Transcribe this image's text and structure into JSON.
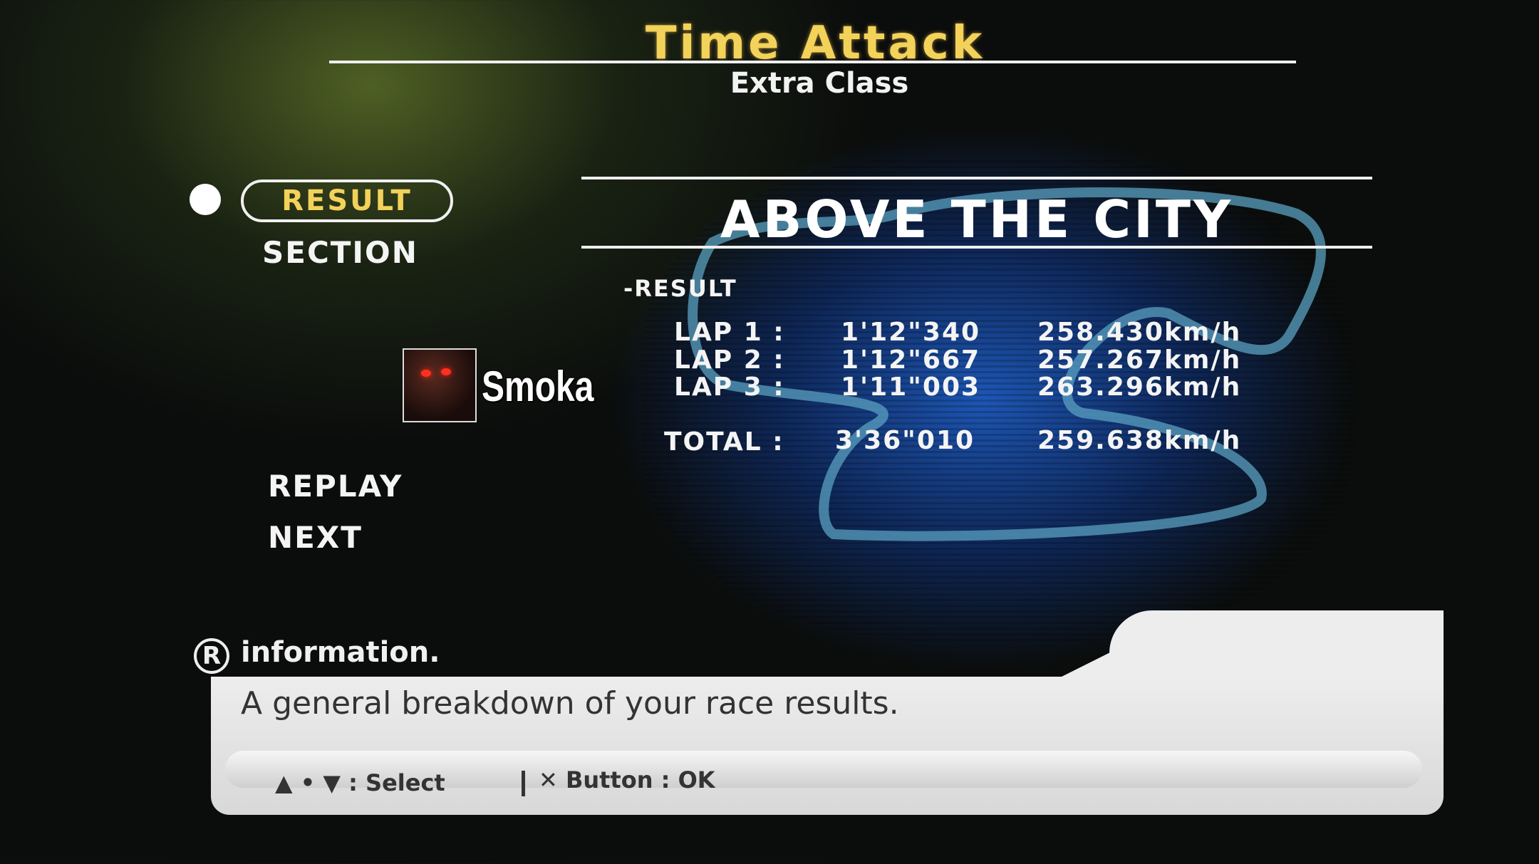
{
  "header": {
    "title": "Time Attack",
    "subtitle": "Extra Class"
  },
  "menu": {
    "items": [
      {
        "label": "RESULT",
        "selected": true
      },
      {
        "label": "SECTION"
      },
      {
        "label": "REPLAY"
      },
      {
        "label": "NEXT"
      }
    ]
  },
  "course": {
    "name": "ABOVE THE CITY"
  },
  "results": {
    "heading": "-RESULT",
    "laps": [
      {
        "label": "LAP 1 :",
        "time": "1'12\"340",
        "speed": "258.430km/h"
      },
      {
        "label": "LAP 2 :",
        "time": "1'12\"667",
        "speed": "257.267km/h"
      },
      {
        "label": "LAP 3 :",
        "time": "1'11\"003",
        "speed": "263.296km/h"
      }
    ],
    "total": {
      "label": "TOTAL :",
      "time": "3'36\"010",
      "speed": "259.638km/h"
    }
  },
  "watermark": {
    "name": "Smoka"
  },
  "info": {
    "icon": "R",
    "label": "information.",
    "message": "A general breakdown of your race results.",
    "hint_select": "▲ • ▼ : Select",
    "hint_ok": "✕ Button : OK"
  },
  "colors": {
    "title": "#f3d25a",
    "accent_blue": "#1e5abe"
  }
}
